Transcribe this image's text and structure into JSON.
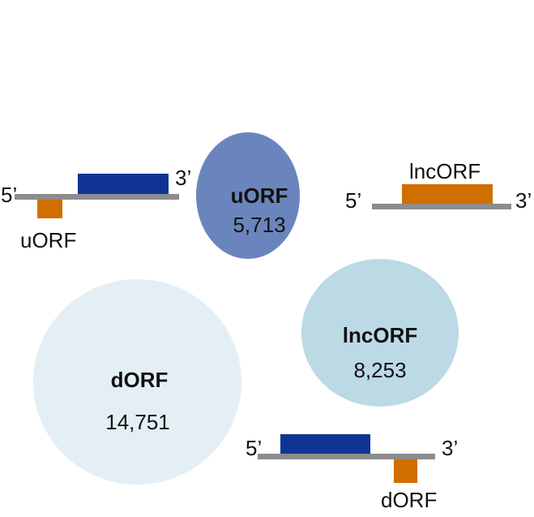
{
  "colors": {
    "uorf_circle": "#6a85bd",
    "lncorf_circle": "#bcd9e6",
    "dorf_circle": "#e4eef5",
    "transcript_line": "#8c8c8c",
    "cds_block": "#0f3494",
    "orf_block": "#d06e00"
  },
  "circles": {
    "uorf": {
      "label": "uORF",
      "count": "5,713"
    },
    "lncorf": {
      "label": "lncORF",
      "count": "8,253"
    },
    "dorf": {
      "label": "dORF",
      "count": "14,751"
    }
  },
  "schematics": {
    "uorf": {
      "five_prime": "5’",
      "three_prime": "3’",
      "label": "uORF"
    },
    "lncorf": {
      "five_prime": "5’",
      "three_prime": "3’",
      "label": "lncORF"
    },
    "dorf": {
      "five_prime": "5’",
      "three_prime": "3’",
      "label": "dORF"
    }
  }
}
